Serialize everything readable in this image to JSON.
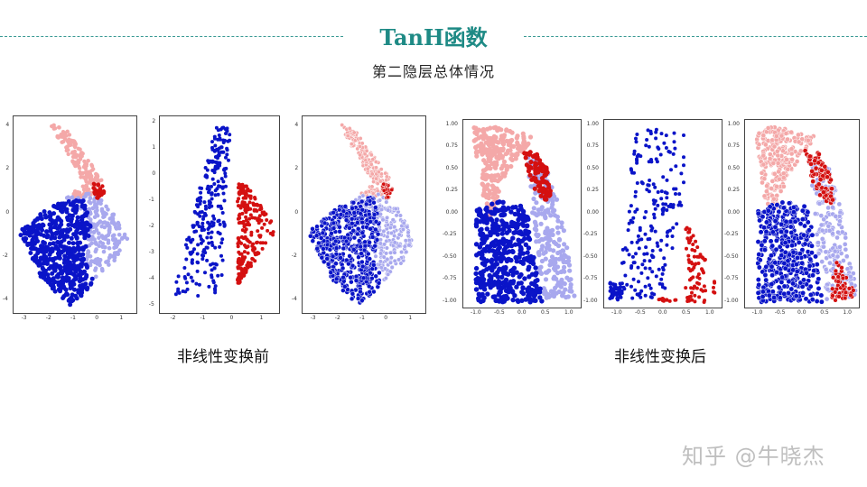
{
  "header": {
    "title": "TanH函数",
    "subtitle": "第二隐层总体情况"
  },
  "colors": {
    "accent": "#1e8a85",
    "dark_blue": "#0a14c8",
    "light_blue": "#a8a8ee",
    "dark_red": "#d41010",
    "light_red": "#f4a8a8"
  },
  "captions": {
    "before": "非线性变换前",
    "after": "非线性变换后"
  },
  "watermark": "知乎 @牛晓杰",
  "panels": [
    {
      "x_ticks": [
        "-3",
        "-2",
        "-1",
        "0",
        "1"
      ],
      "y_ticks": [
        "4",
        "2",
        "0",
        "-2",
        "-4"
      ]
    },
    {
      "x_ticks": [
        "-2",
        "-1",
        "0",
        "1"
      ],
      "y_ticks": [
        "2",
        "1",
        "0",
        "-1",
        "-2",
        "-3",
        "-4",
        "-5"
      ]
    },
    {
      "x_ticks": [
        "-3",
        "-2",
        "-1",
        "0",
        "1"
      ],
      "y_ticks": [
        "4",
        "2",
        "0",
        "-2",
        "-4"
      ]
    },
    {
      "x_ticks": [
        "-1.0",
        "-0.5",
        "0.0",
        "0.5",
        "1.0"
      ],
      "y_ticks": [
        "1.00",
        "0.75",
        "0.50",
        "0.25",
        "0.00",
        "-0.25",
        "-0.50",
        "-0.75",
        "-1.00"
      ]
    },
    {
      "x_ticks": [
        "-1.0",
        "-0.5",
        "0.0",
        "0.5",
        "1.0"
      ],
      "y_ticks": [
        "1.00",
        "0.75",
        "0.50",
        "0.25",
        "0.00",
        "-0.25",
        "-0.50",
        "-0.75",
        "-1.00"
      ]
    },
    {
      "x_ticks": [
        "-1.0",
        "-0.5",
        "0.0",
        "0.5",
        "1.0"
      ],
      "y_ticks": [
        "1.00",
        "0.75",
        "0.50",
        "0.25",
        "0.00",
        "-0.25",
        "-0.50",
        "-0.75",
        "-1.00"
      ]
    }
  ]
}
